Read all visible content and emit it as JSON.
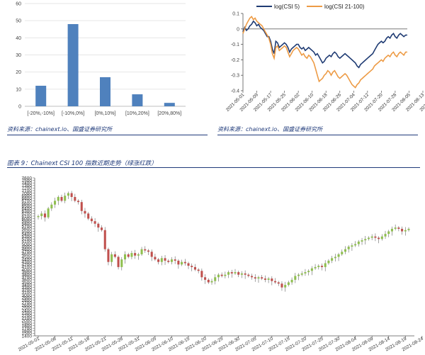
{
  "colors": {
    "bar": "#4f81bd",
    "csi5": "#1f3b73",
    "csi21_100": "#ed9b45",
    "candle_up": "#8fbf4f",
    "candle_down": "#c0504d",
    "text_blue": "#1f3a7a"
  },
  "left_source": "资料来源：chainext.io、国盛证券研究所",
  "right_source": "资料来源：chainext.io、国盛证券研究所",
  "figure_title": "图表 9：Chainext CSI 100 指数近期走势（绿涨红跌）",
  "chart_data": [
    {
      "type": "bar",
      "title": "",
      "categories": [
        "[-20%,-10%]",
        "[-10%,0%]",
        "[0%,10%]",
        "[10%,20%]",
        "[20%,80%]"
      ],
      "values": [
        12,
        48,
        17,
        7,
        2
      ],
      "ylim": [
        0,
        60
      ],
      "yticks": [
        0,
        10,
        20,
        30,
        40,
        50,
        60
      ],
      "grid": true
    },
    {
      "type": "line",
      "title": "",
      "legend_position": "top",
      "ylim": [
        -0.4,
        0.1
      ],
      "yticks": [
        "-0.4",
        "-0.3",
        "-0.2",
        "-0.1",
        "0",
        "0.1"
      ],
      "xticks": [
        "2021-05-01",
        "2021-05-09",
        "2021-05-17",
        "2021-05-25",
        "2021-06-02",
        "2021-06-10",
        "2021-06-18",
        "2021-06-26",
        "2021-07-04",
        "2021-07-12",
        "2021-07-20",
        "2021-07-28",
        "2021-08-05",
        "2021-08-13",
        "2021-08-21"
      ],
      "series": [
        {
          "name": "log(CSI 5)",
          "x_start": "2021-05-01",
          "x_step_days": 1,
          "values": [
            -0.02,
            0.01,
            -0.01,
            0.0,
            0.02,
            0.03,
            0.05,
            0.04,
            0.02,
            0.03,
            0.01,
            0.0,
            -0.01,
            -0.03,
            -0.05,
            -0.05,
            -0.08,
            -0.13,
            -0.16,
            -0.08,
            -0.09,
            -0.12,
            -0.11,
            -0.1,
            -0.09,
            -0.1,
            -0.12,
            -0.15,
            -0.13,
            -0.12,
            -0.11,
            -0.1,
            -0.1,
            -0.12,
            -0.13,
            -0.12,
            -0.14,
            -0.13,
            -0.12,
            -0.13,
            -0.14,
            -0.15,
            -0.17,
            -0.16,
            -0.18,
            -0.2,
            -0.22,
            -0.21,
            -0.19,
            -0.18,
            -0.17,
            -0.18,
            -0.16,
            -0.15,
            -0.16,
            -0.18,
            -0.19,
            -0.18,
            -0.17,
            -0.16,
            -0.17,
            -0.18,
            -0.19,
            -0.2,
            -0.21,
            -0.22,
            -0.24,
            -0.25,
            -0.23,
            -0.22,
            -0.21,
            -0.2,
            -0.19,
            -0.18,
            -0.17,
            -0.16,
            -0.14,
            -0.12,
            -0.1,
            -0.09,
            -0.08,
            -0.09,
            -0.08,
            -0.06,
            -0.05,
            -0.06,
            -0.04,
            -0.03,
            -0.05,
            -0.06,
            -0.04,
            -0.03,
            -0.04,
            -0.05,
            -0.04,
            -0.04
          ]
        },
        {
          "name": "log(CSI 21-100)",
          "x_start": "2021-05-01",
          "x_step_days": 1,
          "values": [
            -0.03,
            0.0,
            0.03,
            0.05,
            0.07,
            0.08,
            0.06,
            0.07,
            0.05,
            0.04,
            0.03,
            0.02,
            0.0,
            -0.02,
            -0.04,
            -0.06,
            -0.1,
            -0.16,
            -0.19,
            -0.12,
            -0.11,
            -0.14,
            -0.13,
            -0.12,
            -0.11,
            -0.12,
            -0.15,
            -0.18,
            -0.16,
            -0.14,
            -0.13,
            -0.12,
            -0.13,
            -0.15,
            -0.17,
            -0.16,
            -0.18,
            -0.19,
            -0.17,
            -0.18,
            -0.2,
            -0.22,
            -0.26,
            -0.3,
            -0.34,
            -0.33,
            -0.32,
            -0.3,
            -0.29,
            -0.27,
            -0.28,
            -0.3,
            -0.28,
            -0.27,
            -0.29,
            -0.31,
            -0.32,
            -0.31,
            -0.3,
            -0.29,
            -0.3,
            -0.32,
            -0.34,
            -0.36,
            -0.37,
            -0.38,
            -0.36,
            -0.35,
            -0.33,
            -0.32,
            -0.31,
            -0.3,
            -0.29,
            -0.28,
            -0.27,
            -0.26,
            -0.24,
            -0.23,
            -0.22,
            -0.21,
            -0.2,
            -0.21,
            -0.19,
            -0.18,
            -0.17,
            -0.18,
            -0.16,
            -0.15,
            -0.17,
            -0.18,
            -0.16,
            -0.15,
            -0.16,
            -0.17,
            -0.15,
            -0.15
          ]
        }
      ]
    },
    {
      "type": "candlestick",
      "title": "",
      "ylim": [
        1400,
        7600
      ],
      "ytick_step": 100,
      "x_start": "2021-05-01",
      "x_step_days": 1,
      "xticks": [
        "2021-05-01",
        "2021-05-06",
        "2021-05-11",
        "2021-05-16",
        "2021-05-21",
        "2021-05-26",
        "2021-05-31",
        "2021-06-05",
        "2021-06-10",
        "2021-06-15",
        "2021-06-20",
        "2021-06-25",
        "2021-06-30",
        "2021-07-05",
        "2021-07-10",
        "2021-07-15",
        "2021-07-20",
        "2021-07-25",
        "2021-07-30",
        "2021-08-04",
        "2021-08-09",
        "2021-08-14",
        "2021-08-19",
        "2021-08-24"
      ],
      "close": [
        6100,
        6200,
        6050,
        6400,
        6550,
        6700,
        6850,
        6700,
        6900,
        7000,
        6850,
        6700,
        6650,
        6300,
        6200,
        6000,
        5900,
        5800,
        5650,
        5550,
        4800,
        4300,
        4600,
        4500,
        4100,
        4400,
        4600,
        4500,
        4650,
        4550,
        4600,
        4800,
        4750,
        4700,
        4500,
        4400,
        4300,
        4450,
        4350,
        4300,
        4400,
        4350,
        4200,
        4300,
        4250,
        4150,
        4100,
        4000,
        3950,
        3700,
        3600,
        3500,
        3550,
        3700,
        3800,
        3750,
        3800,
        3900,
        3850,
        3900,
        3800,
        3850,
        3800,
        3750,
        3700,
        3650,
        3700,
        3650,
        3600,
        3650,
        3550,
        3500,
        3450,
        3300,
        3400,
        3500,
        3600,
        3750,
        3800,
        3850,
        3900,
        3950,
        4050,
        4100,
        4150,
        4100,
        4250,
        4350,
        4450,
        4500,
        4600,
        4700,
        4800,
        4900,
        4950,
        5000,
        5100,
        5150,
        5200,
        5250,
        5300,
        5250,
        5200,
        5300,
        5400,
        5500,
        5600,
        5650,
        5600,
        5500,
        5550,
        5600
      ]
    }
  ]
}
